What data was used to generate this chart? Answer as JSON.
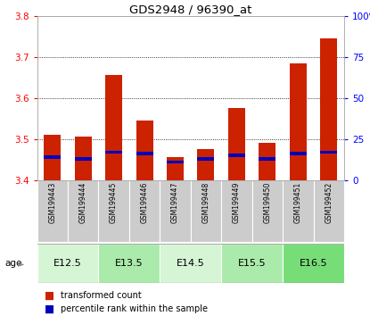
{
  "title": "GDS2948 / 96390_at",
  "samples": [
    "GSM199443",
    "GSM199444",
    "GSM199445",
    "GSM199446",
    "GSM199447",
    "GSM199448",
    "GSM199449",
    "GSM199450",
    "GSM199451",
    "GSM199452"
  ],
  "transformed_count": [
    3.51,
    3.505,
    3.655,
    3.545,
    3.455,
    3.475,
    3.575,
    3.49,
    3.685,
    3.745
  ],
  "percentile_rank": [
    14,
    13,
    17,
    16,
    11,
    13,
    15,
    13,
    16,
    17
  ],
  "age_groups": [
    {
      "label": "E12.5",
      "indices": [
        0,
        1
      ],
      "color": "#d5f5d5"
    },
    {
      "label": "E13.5",
      "indices": [
        2,
        3
      ],
      "color": "#aaeaaa"
    },
    {
      "label": "E14.5",
      "indices": [
        4,
        5
      ],
      "color": "#d5f5d5"
    },
    {
      "label": "E15.5",
      "indices": [
        6,
        7
      ],
      "color": "#aaeaaa"
    },
    {
      "label": "E16.5",
      "indices": [
        8,
        9
      ],
      "color": "#77dd77"
    }
  ],
  "ylim_left": [
    3.4,
    3.8
  ],
  "ylim_right": [
    0,
    100
  ],
  "yticks_left": [
    3.4,
    3.5,
    3.6,
    3.7,
    3.8
  ],
  "yticks_right": [
    0,
    25,
    50,
    75,
    100
  ],
  "bar_color_red": "#cc2200",
  "bar_color_blue": "#0000bb",
  "bar_width": 0.55,
  "base_value": 3.4,
  "plot_bg_color": "#ffffff",
  "sample_bg_color": "#cccccc",
  "legend_red_label": "transformed count",
  "legend_blue_label": "percentile rank within the sample",
  "age_label": "age"
}
